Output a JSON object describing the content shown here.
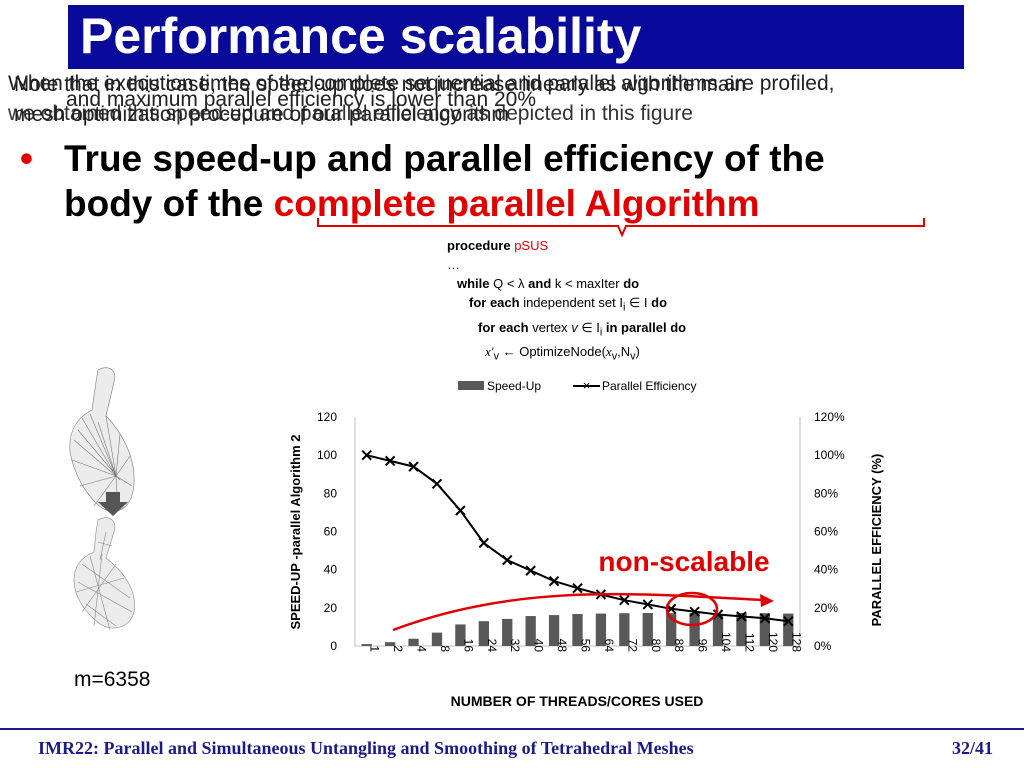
{
  "slide": {
    "title": "Performance scalability",
    "overlap_lines": [
      "When the execution times of the complete sequential and parallel algorithms are profiled,",
      "we obtained this speed-up and parallel efficiency as depicted in this figure",
      "Note that in this case, the speed-up does not increase linearly as with the main",
      "mesh optimization procedure of our parallel algorithm",
      "and maximum parallel efficiency is lower than 20%"
    ],
    "bullet": {
      "line1": "True speed-up and parallel efficiency of the",
      "line2_prefix": "body of the ",
      "line2_highlight": "complete parallel Algorithm"
    },
    "procedure": {
      "kw_procedure": "procedure",
      "name": "pSUS",
      "ellipsis": "…",
      "kw_while": "while",
      "while_cond_a": " Q < λ ",
      "kw_and": "and",
      "while_cond_b": " k < maxIter ",
      "kw_do": "do",
      "kw_foreach": "for each",
      "foreach_set": " independent set I",
      "foreach_sub": "i",
      "foreach_in": " ∈ I ",
      "kw_do2": "do",
      "kw_foreach2": "for each",
      "vertex_text": " vertex ",
      "vertex_var": "v",
      "vertex_in": " ∈ I",
      "vertex_sub": "i",
      "kw_parallel": " in parallel do",
      "assign_lhs": "x'",
      "assign_lhs_sub": "v",
      "assign_arrow": " ← OptimizeNode(",
      "assign_x": "x",
      "assign_x_sub": "v",
      "assign_n": ",N",
      "assign_n_sub": "v",
      "assign_close": ")"
    },
    "mesh_label": "m=6358",
    "annotation": "non-scalable",
    "footer_left": "IMR22: Parallel and Simultaneous Untangling and Smoothing of Tetrahedral Meshes",
    "footer_right": "32/41"
  },
  "colors": {
    "title_bg": "#0a0a9a",
    "accent_red": "#e00000",
    "bar_gray": "#595959",
    "footer_blue": "#1a1a8a"
  },
  "chart_data": {
    "type": "bar",
    "categories": [
      "1",
      "2",
      "4",
      "8",
      "16",
      "24",
      "32",
      "40",
      "48",
      "56",
      "64",
      "72",
      "80",
      "88",
      "96",
      "104",
      "112",
      "120",
      "128"
    ],
    "series": [
      {
        "name": "Speed-Up",
        "type": "bar",
        "axis": "left",
        "values": [
          1,
          2,
          3.8,
          7,
          11.3,
          13,
          14.2,
          15.7,
          16.2,
          16.8,
          17,
          17.2,
          17.3,
          17.2,
          17.3,
          16.8,
          17.3,
          17.2,
          17
        ]
      },
      {
        "name": "Parallel Efficiency",
        "type": "line",
        "axis": "right",
        "unit": "%",
        "values": [
          100,
          97,
          94,
          85,
          71,
          54,
          45,
          39.5,
          34,
          30.3,
          27,
          24,
          21.8,
          19.5,
          18,
          16.5,
          15.5,
          14.5,
          13
        ]
      }
    ],
    "xlabel": "NUMBER OF THREADS/CORES USED",
    "ylabel_left": "SPEED-UP -parallel Algorithm 2",
    "ylabel_right": "PARALLEL EFFICIENCY (%)",
    "ylim_left": [
      0,
      120
    ],
    "ylim_right": [
      0,
      120
    ],
    "yticks_left": [
      "0",
      "20",
      "40",
      "60",
      "80",
      "100",
      "120"
    ],
    "yticks_right": [
      "0%",
      "20%",
      "40%",
      "60%",
      "80%",
      "100%",
      "120%"
    ],
    "legend_position": "top",
    "grid": false
  }
}
